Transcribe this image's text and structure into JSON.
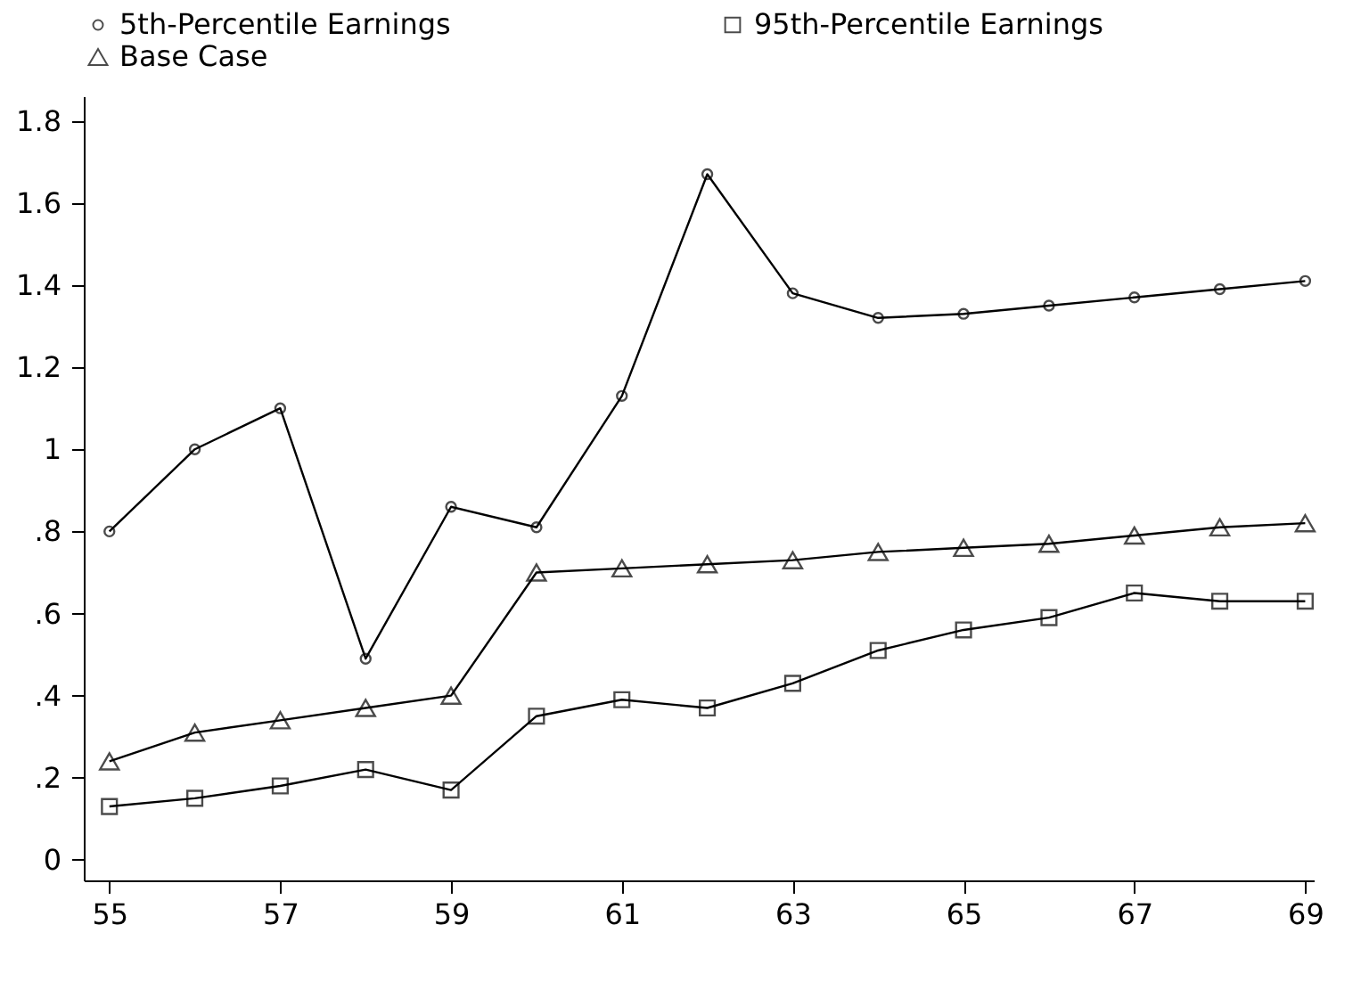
{
  "chart_data": {
    "type": "line",
    "x": [
      55,
      56,
      57,
      58,
      59,
      60,
      61,
      62,
      63,
      64,
      65,
      66,
      67,
      68,
      69
    ],
    "series": [
      {
        "name": "5th-Percentile Earnings",
        "color": "#000000",
        "marker": "circle",
        "values": [
          0.8,
          1.0,
          1.1,
          0.49,
          0.86,
          0.81,
          1.13,
          1.67,
          1.38,
          1.32,
          1.33,
          1.35,
          1.37,
          1.39,
          1.41
        ]
      },
      {
        "name": "95th-Percentile Earnings",
        "color": "#000000",
        "marker": "square",
        "values": [
          0.13,
          0.15,
          0.18,
          0.22,
          0.17,
          0.35,
          0.39,
          0.37,
          0.43,
          0.51,
          0.56,
          0.59,
          0.65,
          0.63,
          0.63
        ]
      },
      {
        "name": "Base Case",
        "color": "#000000",
        "marker": "triangle",
        "values": [
          0.24,
          0.31,
          0.34,
          0.37,
          0.4,
          0.7,
          0.71,
          0.72,
          0.73,
          0.75,
          0.76,
          0.77,
          0.79,
          0.81,
          0.82
        ]
      }
    ],
    "xlim": [
      54.7,
      69.1
    ],
    "xticks": [
      55,
      57,
      59,
      61,
      63,
      65,
      67,
      69
    ],
    "ylim": [
      -0.05,
      1.86
    ],
    "yticks": [
      0,
      {
        "value": 0.2,
        "label": ".2"
      },
      {
        "value": 0.4,
        "label": ".4"
      },
      {
        "value": 0.6,
        "label": ".6"
      },
      {
        "value": 0.8,
        "label": ".8"
      },
      1,
      1.2,
      1.4,
      1.6,
      1.8
    ],
    "grid": false,
    "legend": "top",
    "line_style": "solid"
  }
}
